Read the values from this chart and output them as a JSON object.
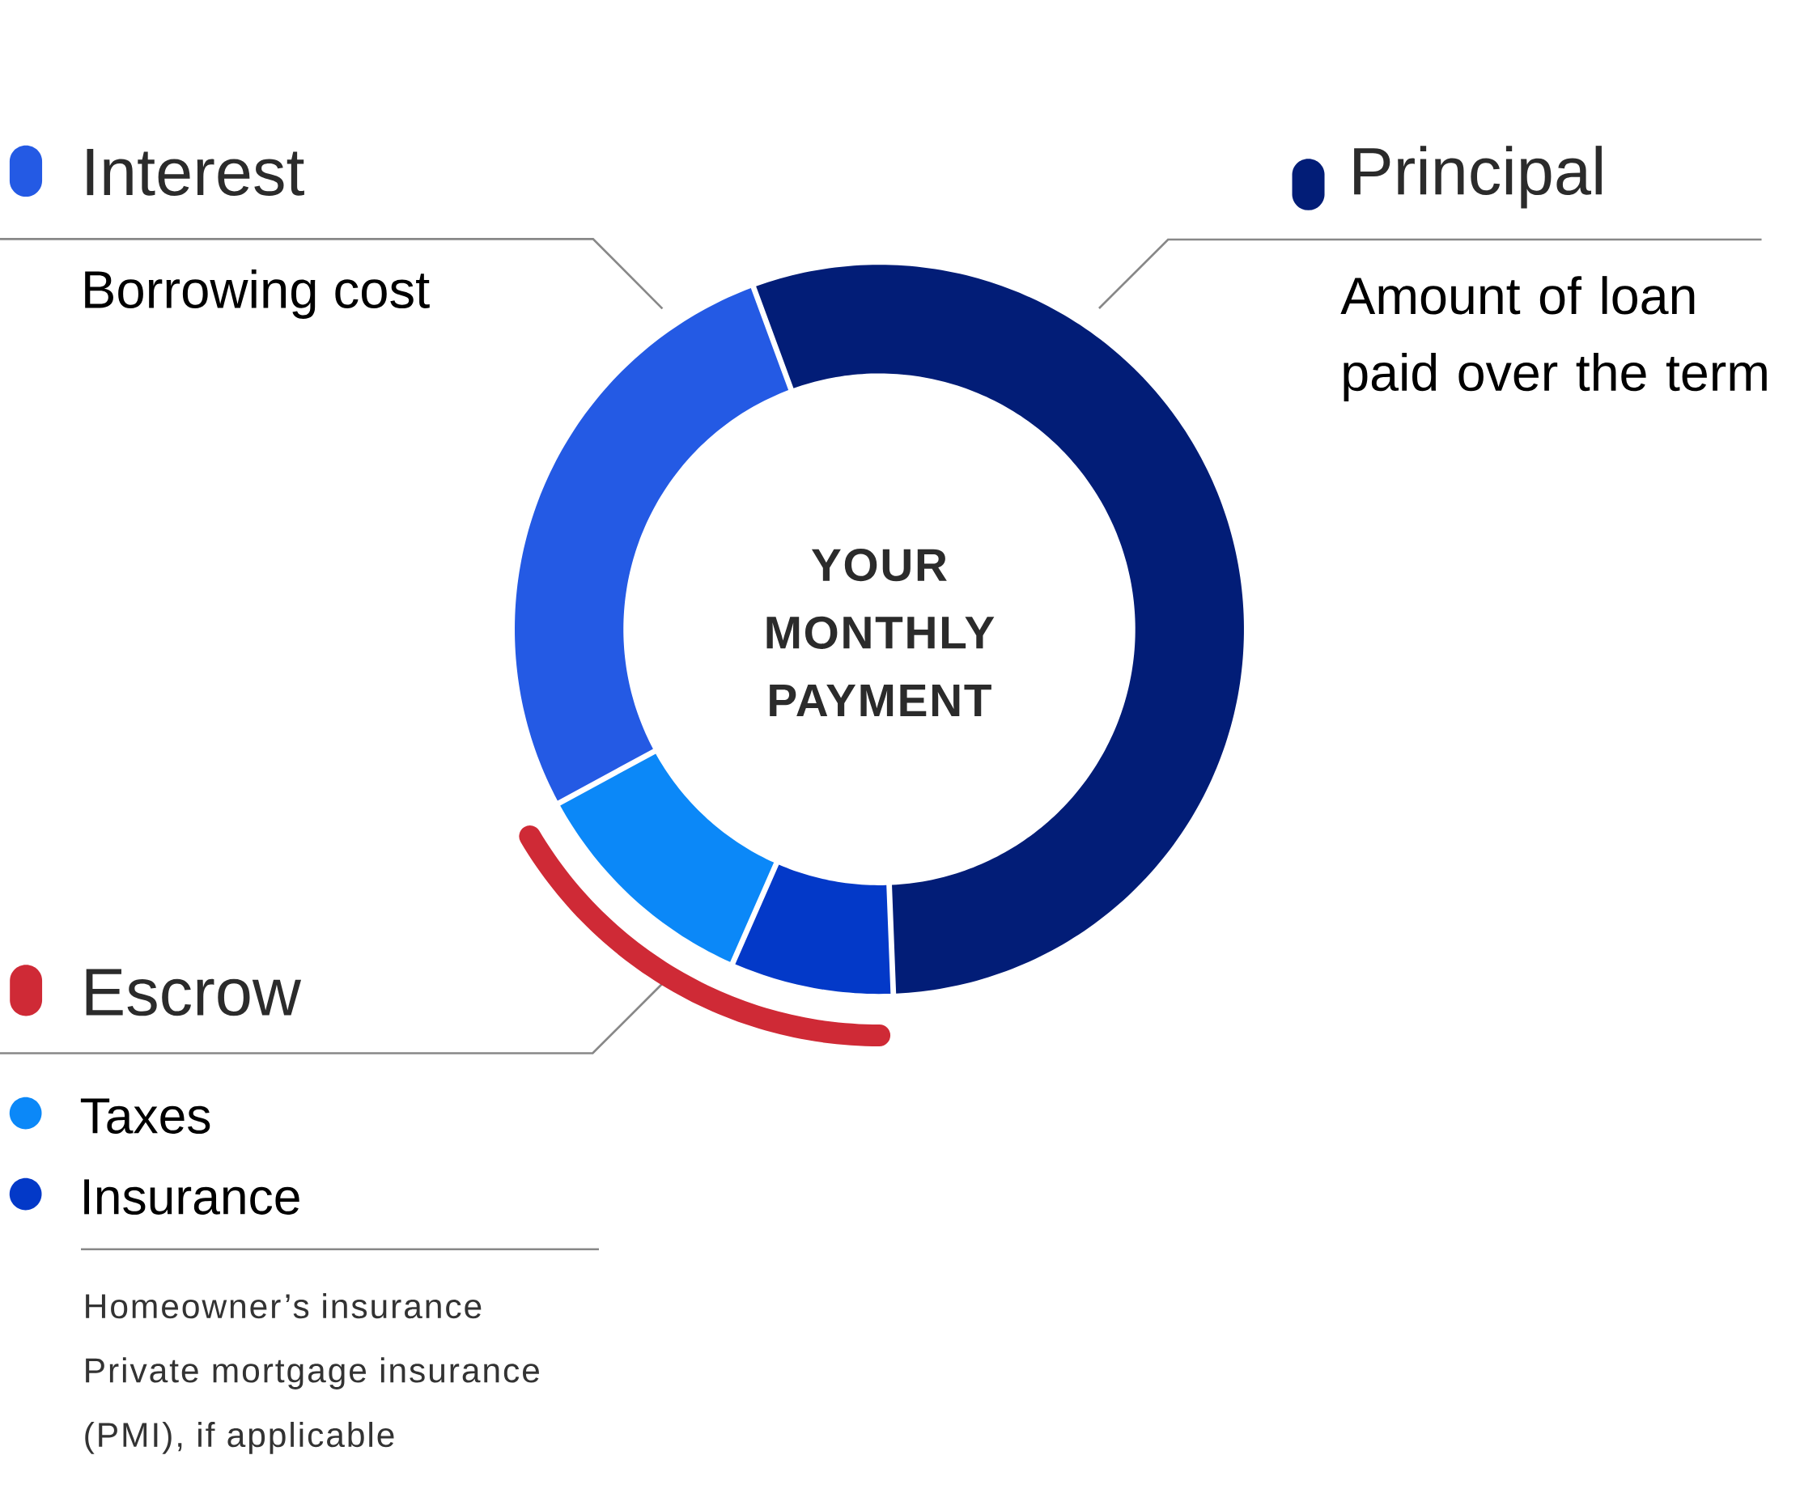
{
  "chart_data": {
    "type": "donut",
    "categories": [
      "Principal",
      "Insurance",
      "Taxes",
      "Interest"
    ],
    "values": [
      55,
      7.2,
      10.5,
      27.3
    ],
    "colors": [
      "#021d77",
      "#0339c8",
      "#0b88f8",
      "#245ae4"
    ],
    "legend": "left",
    "annotations": [
      "YOUR MONTHLY PAYMENT",
      "Borrowing cost",
      "Amount of loan paid over the term",
      "Escrow",
      "Homeowner’s insurance",
      "Private mortgage insurance (PMI), if applicable"
    ]
  }
}
